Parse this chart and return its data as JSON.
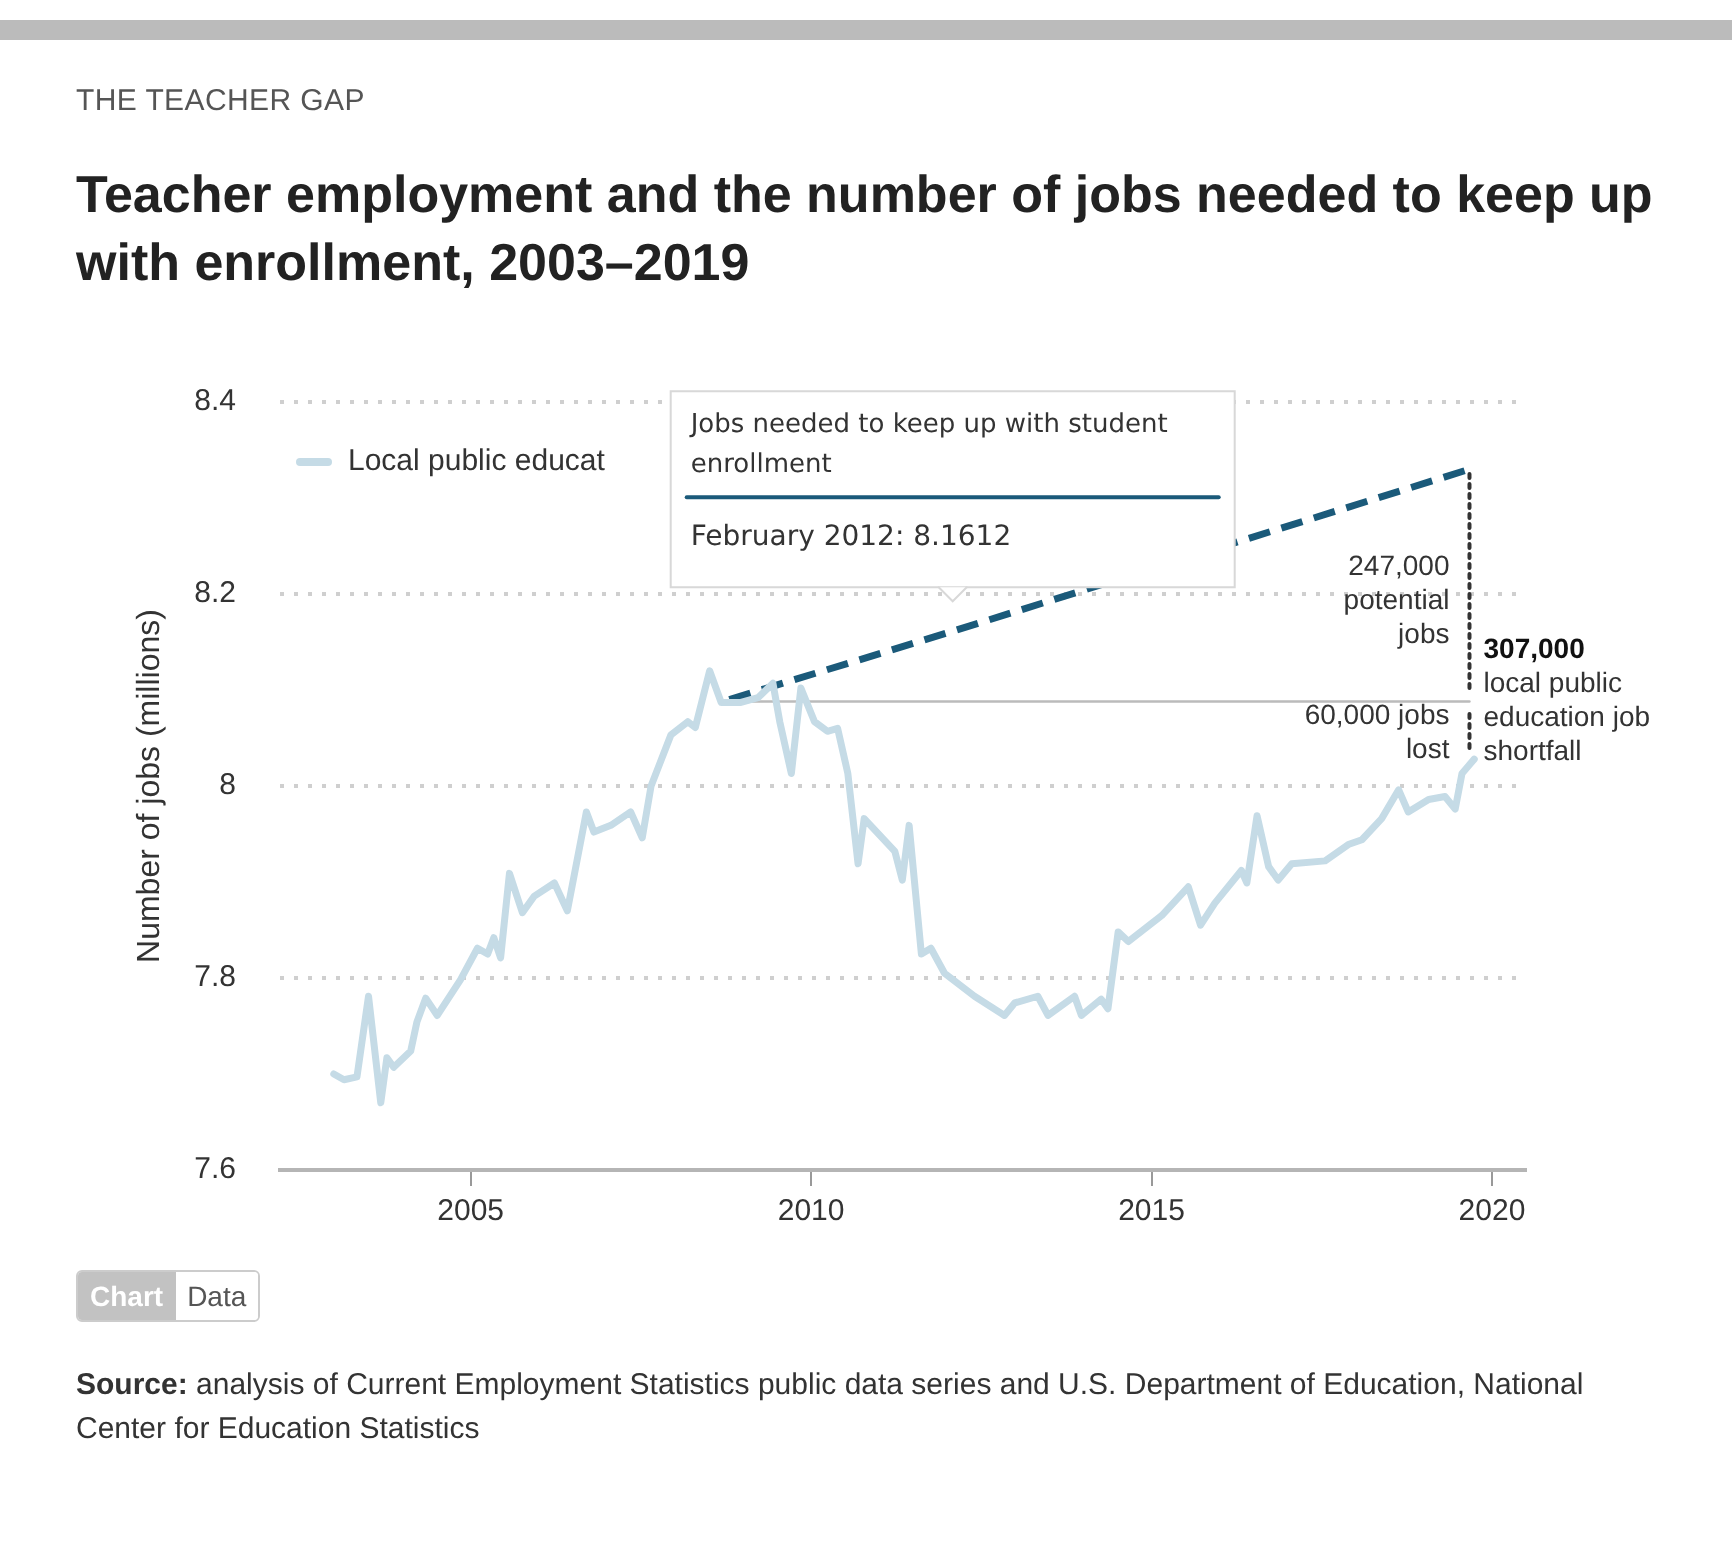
{
  "chart_data": {
    "type": "line",
    "subtitle": "THE TEACHER GAP",
    "title": "Teacher employment and the number of jobs needed to keep up with enrollment, 2003–2019",
    "ylabel": "Number of jobs (millions)",
    "xlim": [
      2002.2,
      2020.5
    ],
    "xticks": [
      2005,
      2010,
      2015,
      2020
    ],
    "ylim": [
      7.6,
      8.4
    ],
    "yticks": [
      7.6,
      7.8,
      8,
      8.2,
      8.4
    ],
    "grid": "y",
    "legend": "top left",
    "marker": "none",
    "series": [
      {
        "name": "Local public educat",
        "color": "#c5dbe6",
        "line_style": "solid",
        "x": [
          2002.99,
          2003.14,
          2003.33,
          2003.5,
          2003.68,
          2003.77,
          2003.87,
          2004.12,
          2004.21,
          2004.34,
          2004.51,
          2004.85,
          2005.1,
          2005.25,
          2005.34,
          2005.44,
          2005.57,
          2005.76,
          2005.93,
          2006.23,
          2006.42,
          2006.7,
          2006.81,
          2007.06,
          2007.35,
          2007.52,
          2007.65,
          2007.94,
          2008.19,
          2008.3,
          2008.51,
          2008.68,
          2008.97,
          2009.22,
          2009.44,
          2009.54,
          2009.71,
          2009.85,
          2010.05,
          2010.24,
          2010.39,
          2010.54,
          2010.69,
          2010.78,
          2011.23,
          2011.34,
          2011.44,
          2011.62,
          2011.76,
          2011.96,
          2012.4,
          2012.84,
          2012.99,
          2013.33,
          2013.48,
          2013.87,
          2013.97,
          2014.26,
          2014.36,
          2014.51,
          2014.66,
          2015.15,
          2015.54,
          2015.72,
          2015.93,
          2016.32,
          2016.4,
          2016.55,
          2016.72,
          2016.86,
          2017.06,
          2017.55,
          2017.89,
          2018.09,
          2018.38,
          2018.63,
          2018.77,
          2019.07,
          2019.31,
          2019.46,
          2019.56,
          2019.74
        ],
        "values": [
          7.7,
          7.694,
          7.697,
          7.781,
          7.67,
          7.717,
          7.707,
          7.724,
          7.754,
          7.779,
          7.761,
          7.798,
          7.831,
          7.825,
          7.842,
          7.821,
          7.909,
          7.868,
          7.885,
          7.899,
          7.87,
          7.973,
          7.952,
          7.959,
          7.973,
          7.946,
          8.0,
          8.053,
          8.067,
          8.061,
          8.12,
          8.087,
          8.087,
          8.092,
          8.107,
          8.067,
          8.013,
          8.102,
          8.067,
          8.057,
          8.06,
          8.013,
          7.919,
          7.966,
          7.932,
          7.902,
          7.959,
          7.825,
          7.831,
          7.805,
          7.781,
          7.761,
          7.774,
          7.781,
          7.761,
          7.781,
          7.761,
          7.778,
          7.768,
          7.848,
          7.838,
          7.865,
          7.895,
          7.855,
          7.878,
          7.912,
          7.899,
          7.969,
          7.916,
          7.902,
          7.919,
          7.922,
          7.939,
          7.944,
          7.966,
          7.996,
          7.973,
          7.986,
          7.989,
          7.976,
          8.013,
          8.028
        ]
      },
      {
        "name": "Jobs needed to keep up with student enrollment",
        "color": "#1b5a7a",
        "line_style": "dashed",
        "x": [
          2008.8,
          2012.08,
          2019.67
        ],
        "values": [
          8.09,
          8.1612,
          8.33
        ]
      },
      {
        "color": "#bbbbbb",
        "line_style": "solid",
        "x": [
          2008.8,
          2019.67
        ],
        "values": [
          8.088,
          8.088
        ]
      },
      {
        "color": "#333333",
        "line_style": "dotted",
        "x": [
          2019.67,
          2019.67
        ],
        "values": [
          8.325,
          8.1
        ]
      },
      {
        "color": "#333333",
        "line_style": "dotted",
        "x": [
          2019.67,
          2019.67
        ],
        "values": [
          8.075,
          8.035
        ]
      }
    ],
    "annotations": [
      "247,000\npotential\njobs",
      "60,000 jobs\nlost",
      "307,000\nlocal public\neducation job\nshortfall",
      "February 2012: 8.1612",
      "Chart",
      "Data",
      "Source: analysis of Current Employment Statistics public data series and U.S. Department of Education, National Center for Education Statistics"
    ]
  }
}
